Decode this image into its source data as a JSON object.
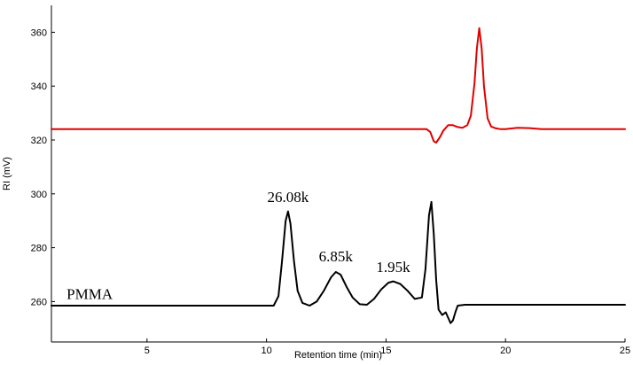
{
  "chart_data": {
    "type": "line",
    "xlabel": "Retention time (min)",
    "ylabel": "RI (mV)",
    "xlim": [
      1,
      25
    ],
    "ylim": [
      245,
      370
    ],
    "x_ticks": [
      5,
      10,
      15,
      20,
      25
    ],
    "y_ticks": [
      260,
      280,
      300,
      320,
      340,
      360
    ],
    "grid": false,
    "series": [
      {
        "name": "",
        "color": "#e00000",
        "x": [
          1,
          16.7,
          16.85,
          17.0,
          17.1,
          17.25,
          17.4,
          17.6,
          17.8,
          18.0,
          18.2,
          18.4,
          18.55,
          18.7,
          18.8,
          18.9,
          19.0,
          19.1,
          19.25,
          19.4,
          19.6,
          19.8,
          20.0,
          20.5,
          21.0,
          21.5,
          25
        ],
        "y": [
          324,
          324,
          323,
          319.5,
          319,
          321,
          323.5,
          325.5,
          325.5,
          324.8,
          324.5,
          325.5,
          329,
          341,
          354,
          361.5,
          354,
          340,
          328,
          325,
          324.3,
          324,
          324,
          324.5,
          324.4,
          324,
          324
        ]
      },
      {
        "name": "PMMA",
        "color": "#000000",
        "x": [
          1,
          10.3,
          10.5,
          10.65,
          10.8,
          10.9,
          11.0,
          11.15,
          11.3,
          11.5,
          11.8,
          12.1,
          12.4,
          12.7,
          12.9,
          13.1,
          13.35,
          13.6,
          13.9,
          14.2,
          14.5,
          14.8,
          15.1,
          15.3,
          15.6,
          15.9,
          16.2,
          16.5,
          16.65,
          16.8,
          16.9,
          17.0,
          17.1,
          17.2,
          17.35,
          17.5,
          17.6,
          17.7,
          17.8,
          17.9,
          18.0,
          18.3,
          25
        ],
        "y": [
          258.5,
          258.5,
          262,
          275,
          290,
          293.5,
          289,
          275,
          264,
          259.5,
          258.5,
          260,
          264,
          269,
          271,
          270,
          265.5,
          261.5,
          259,
          258.8,
          261,
          264.5,
          267,
          267.5,
          266.5,
          264,
          261,
          261.5,
          272,
          292,
          297,
          285,
          268,
          257,
          255,
          256,
          254,
          252,
          253,
          256,
          258.5,
          258.8,
          258.8
        ]
      }
    ],
    "annotations": [
      {
        "text": "26.08k",
        "x": 10.9,
        "y": 297
      },
      {
        "text": "6.85k",
        "x": 12.9,
        "y": 275
      },
      {
        "text": "1.95k",
        "x": 15.3,
        "y": 271
      },
      {
        "text": "PMMA",
        "x": 2.6,
        "y": 261
      }
    ]
  }
}
